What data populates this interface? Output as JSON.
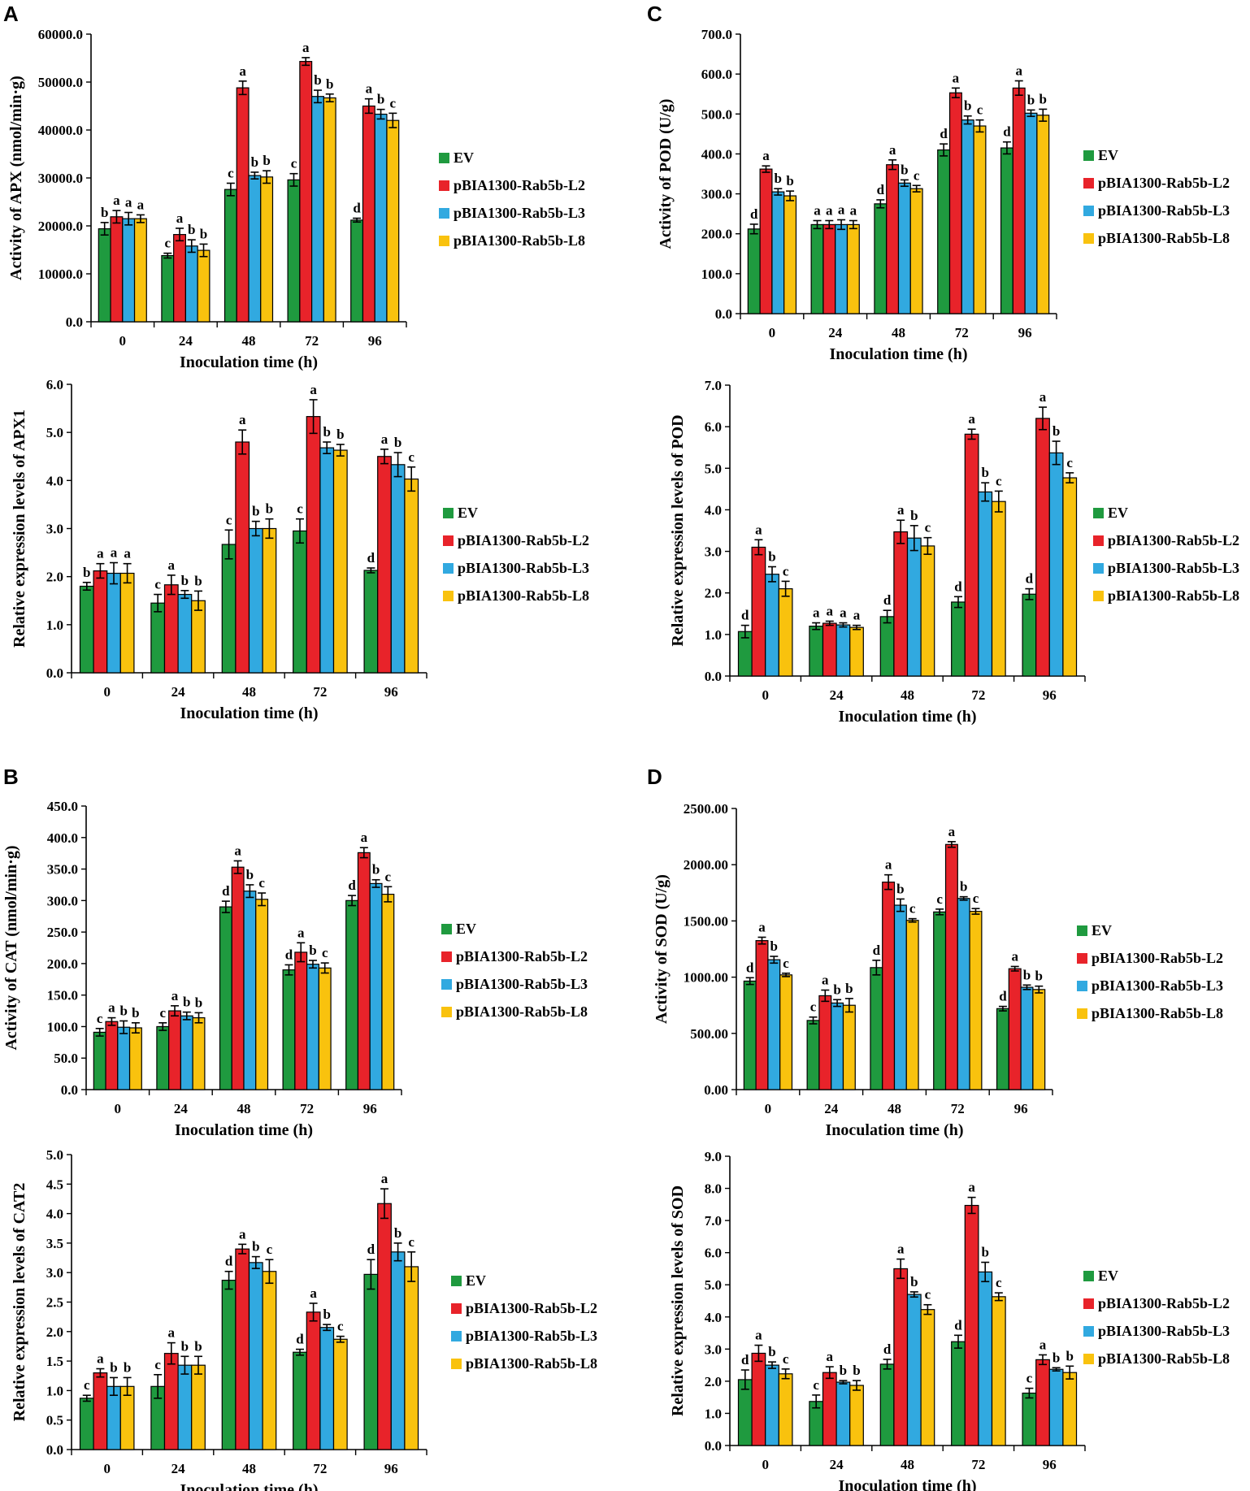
{
  "figure": {
    "panel_labels": [
      "A",
      "C",
      "B",
      "D"
    ],
    "series_names": [
      "EV",
      "pBIA1300-Rab5b-L2",
      "pBIA1300-Rab5b-L3",
      "pBIA1300-Rab5b-L8"
    ],
    "series_colors": [
      "#1f9a3f",
      "#e8232a",
      "#31a9e0",
      "#f9c20e"
    ]
  },
  "chart_data": [
    {
      "type": "bar",
      "panel": "A",
      "categories": [
        "0",
        "24",
        "48",
        "72",
        "96"
      ],
      "xlabel": "Inoculation time (h)",
      "ylabel": "Activity of APX (nmol/min·g)",
      "ylim": [
        0,
        60000
      ],
      "yticks": [
        0,
        10000,
        20000,
        30000,
        40000,
        50000,
        60000
      ],
      "ytick_labels": [
        "0.0",
        "10000.0",
        "20000.0",
        "30000.0",
        "40000.0",
        "50000.0",
        "60000.0"
      ],
      "series": [
        {
          "name": "EV",
          "values": [
            19400,
            13800,
            27600,
            29600,
            21200
          ],
          "errors": [
            1300,
            500,
            1300,
            1300,
            400
          ],
          "letters": [
            "b",
            "c",
            "c",
            "c",
            "d"
          ]
        },
        {
          "name": "pBIA1300-Rab5b-L2",
          "values": [
            21900,
            18200,
            48800,
            54300,
            45000
          ],
          "errors": [
            1300,
            1300,
            1400,
            800,
            1500
          ],
          "letters": [
            "a",
            "a",
            "a",
            "a",
            "a"
          ]
        },
        {
          "name": "pBIA1300-Rab5b-L3",
          "values": [
            21500,
            15800,
            30500,
            47000,
            43300
          ],
          "errors": [
            1300,
            1300,
            700,
            1300,
            1000
          ],
          "letters": [
            "a",
            "b",
            "b",
            "b",
            "b"
          ]
        },
        {
          "name": "pBIA1300-Rab5b-L8",
          "values": [
            21500,
            14900,
            30200,
            46700,
            42000
          ],
          "errors": [
            800,
            1300,
            1300,
            800,
            1500
          ],
          "letters": [
            "a",
            "b",
            "b",
            "b",
            "c"
          ]
        }
      ]
    },
    {
      "type": "bar",
      "panel": "A",
      "categories": [
        "0",
        "24",
        "48",
        "72",
        "96"
      ],
      "xlabel": "Inoculation time (h)",
      "ylabel": "Relative expression levels of APX1",
      "ylim": [
        0,
        6
      ],
      "yticks": [
        0,
        1,
        2,
        3,
        4,
        5,
        6
      ],
      "ytick_labels": [
        "0.0",
        "1.0",
        "2.0",
        "3.0",
        "4.0",
        "5.0",
        "6.0"
      ],
      "series": [
        {
          "name": "EV",
          "values": [
            1.8,
            1.45,
            2.67,
            2.95,
            2.13
          ],
          "errors": [
            0.08,
            0.18,
            0.3,
            0.25,
            0.05
          ],
          "letters": [
            "b",
            "c",
            "c",
            "c",
            "d"
          ]
        },
        {
          "name": "pBIA1300-Rab5b-L2",
          "values": [
            2.12,
            1.83,
            4.8,
            5.33,
            4.5
          ],
          "errors": [
            0.15,
            0.2,
            0.25,
            0.35,
            0.15
          ],
          "letters": [
            "a",
            "a",
            "a",
            "a",
            "a"
          ]
        },
        {
          "name": "pBIA1300-Rab5b-L3",
          "values": [
            2.07,
            1.63,
            3.0,
            4.68,
            4.33
          ],
          "errors": [
            0.22,
            0.08,
            0.15,
            0.12,
            0.25
          ],
          "letters": [
            "a",
            "b",
            "b",
            "b",
            "b"
          ]
        },
        {
          "name": "pBIA1300-Rab5b-L8",
          "values": [
            2.07,
            1.5,
            3.0,
            4.63,
            4.03
          ],
          "errors": [
            0.2,
            0.2,
            0.2,
            0.12,
            0.25
          ],
          "letters": [
            "a",
            "b",
            "b",
            "b",
            "c"
          ]
        }
      ]
    },
    {
      "type": "bar",
      "panel": "C",
      "categories": [
        "0",
        "24",
        "48",
        "72",
        "96"
      ],
      "xlabel": "Inoculation time (h)",
      "ylabel": "Activity of POD (U/g)",
      "ylim": [
        0,
        700
      ],
      "yticks": [
        0,
        100,
        200,
        300,
        400,
        500,
        600,
        700
      ],
      "ytick_labels": [
        "0.0",
        "100.0",
        "200.0",
        "300.0",
        "400.0",
        "500.0",
        "600.0",
        "700.0"
      ],
      "series": [
        {
          "name": "EV",
          "values": [
            212,
            223,
            275,
            410,
            415
          ],
          "errors": [
            12,
            10,
            10,
            15,
            15
          ],
          "letters": [
            "d",
            "a",
            "d",
            "d",
            "d"
          ]
        },
        {
          "name": "pBIA1300-Rab5b-L2",
          "values": [
            362,
            223,
            373,
            553,
            565
          ],
          "errors": [
            8,
            10,
            12,
            12,
            18
          ],
          "letters": [
            "a",
            "a",
            "a",
            "a",
            "a"
          ]
        },
        {
          "name": "pBIA1300-Rab5b-L3",
          "values": [
            305,
            223,
            327,
            485,
            502
          ],
          "errors": [
            8,
            12,
            8,
            10,
            8
          ],
          "letters": [
            "b",
            "a",
            "b",
            "b",
            "b"
          ]
        },
        {
          "name": "pBIA1300-Rab5b-L8",
          "values": [
            295,
            223,
            313,
            470,
            497
          ],
          "errors": [
            12,
            10,
            8,
            15,
            15
          ],
          "letters": [
            "b",
            "a",
            "c",
            "c",
            "b"
          ]
        }
      ]
    },
    {
      "type": "bar",
      "panel": "C",
      "categories": [
        "0",
        "24",
        "48",
        "72",
        "96"
      ],
      "xlabel": "Inoculation time (h)",
      "ylabel": "Relative expression levels of POD",
      "ylim": [
        0,
        7
      ],
      "yticks": [
        0,
        1,
        2,
        3,
        4,
        5,
        6,
        7
      ],
      "ytick_labels": [
        "0.0",
        "1.0",
        "2.0",
        "3.0",
        "4.0",
        "5.0",
        "6.0",
        "7.0"
      ],
      "series": [
        {
          "name": "EV",
          "values": [
            1.07,
            1.2,
            1.43,
            1.78,
            1.97
          ],
          "errors": [
            0.15,
            0.08,
            0.15,
            0.13,
            0.13
          ],
          "letters": [
            "d",
            "a",
            "d",
            "d",
            "d"
          ]
        },
        {
          "name": "pBIA1300-Rab5b-L2",
          "values": [
            3.1,
            1.27,
            3.47,
            5.82,
            6.2
          ],
          "errors": [
            0.18,
            0.05,
            0.28,
            0.12,
            0.27
          ],
          "letters": [
            "a",
            "a",
            "a",
            "a",
            "a"
          ]
        },
        {
          "name": "pBIA1300-Rab5b-L3",
          "values": [
            2.45,
            1.23,
            3.32,
            4.43,
            5.37
          ],
          "errors": [
            0.18,
            0.05,
            0.3,
            0.22,
            0.28
          ],
          "letters": [
            "b",
            "a",
            "b",
            "b",
            "b"
          ]
        },
        {
          "name": "pBIA1300-Rab5b-L8",
          "values": [
            2.1,
            1.17,
            3.13,
            4.2,
            4.77
          ],
          "errors": [
            0.18,
            0.05,
            0.2,
            0.25,
            0.12
          ],
          "letters": [
            "c",
            "a",
            "c",
            "c",
            "c"
          ]
        }
      ]
    },
    {
      "type": "bar",
      "panel": "B",
      "categories": [
        "0",
        "24",
        "48",
        "72",
        "96"
      ],
      "xlabel": "Inoculation time (h)",
      "ylabel": "Activity of CAT (nmol/min·g)",
      "ylim": [
        0,
        450
      ],
      "yticks": [
        0,
        50,
        100,
        150,
        200,
        250,
        300,
        350,
        400,
        450
      ],
      "ytick_labels": [
        "0.0",
        "50.0",
        "100.0",
        "150.0",
        "200.0",
        "250.0",
        "300.0",
        "350.0",
        "400.0",
        "450.0"
      ],
      "series": [
        {
          "name": "EV",
          "values": [
            91,
            100,
            290,
            190,
            300
          ],
          "errors": [
            6,
            6,
            9,
            8,
            8
          ],
          "letters": [
            "c",
            "c",
            "d",
            "d",
            "d"
          ]
        },
        {
          "name": "pBIA1300-Rab5b-L2",
          "values": [
            108,
            125,
            353,
            218,
            376
          ],
          "errors": [
            6,
            8,
            10,
            15,
            8
          ],
          "letters": [
            "a",
            "a",
            "a",
            "a",
            "a"
          ]
        },
        {
          "name": "pBIA1300-Rab5b-L3",
          "values": [
            99,
            117,
            315,
            199,
            327
          ],
          "errors": [
            10,
            6,
            10,
            6,
            6
          ],
          "letters": [
            "b",
            "b",
            "b",
            "b",
            "b"
          ]
        },
        {
          "name": "pBIA1300-Rab5b-L8",
          "values": [
            98,
            114,
            302,
            193,
            310
          ],
          "errors": [
            8,
            8,
            10,
            8,
            12
          ],
          "letters": [
            "b",
            "b",
            "c",
            "c",
            "c"
          ]
        }
      ]
    },
    {
      "type": "bar",
      "panel": "B",
      "categories": [
        "0",
        "24",
        "48",
        "72",
        "96"
      ],
      "xlabel": "Inoculation time (h)",
      "ylabel": "Relative expression levels of CAT2",
      "ylim": [
        0,
        5
      ],
      "yticks": [
        0,
        0.5,
        1,
        1.5,
        2,
        2.5,
        3,
        3.5,
        4,
        4.5,
        5
      ],
      "ytick_labels": [
        "0.0",
        "0.5",
        "1.0",
        "1.5",
        "2.0",
        "2.5",
        "3.0",
        "3.5",
        "4.0",
        "4.5",
        "5.0"
      ],
      "series": [
        {
          "name": "EV",
          "values": [
            0.87,
            1.07,
            2.87,
            1.65,
            2.97
          ],
          "errors": [
            0.05,
            0.2,
            0.15,
            0.05,
            0.25
          ],
          "letters": [
            "c",
            "c",
            "d",
            "d",
            "d"
          ]
        },
        {
          "name": "pBIA1300-Rab5b-L2",
          "values": [
            1.3,
            1.63,
            3.4,
            2.33,
            4.17
          ],
          "errors": [
            0.07,
            0.18,
            0.08,
            0.15,
            0.25
          ],
          "letters": [
            "a",
            "a",
            "a",
            "a",
            "a"
          ]
        },
        {
          "name": "pBIA1300-Rab5b-L3",
          "values": [
            1.07,
            1.43,
            3.17,
            2.07,
            3.35
          ],
          "errors": [
            0.15,
            0.15,
            0.1,
            0.05,
            0.15
          ],
          "letters": [
            "b",
            "b",
            "b",
            "b",
            "b"
          ]
        },
        {
          "name": "pBIA1300-Rab5b-L8",
          "values": [
            1.07,
            1.43,
            3.02,
            1.87,
            3.1
          ],
          "errors": [
            0.15,
            0.15,
            0.2,
            0.05,
            0.25
          ],
          "letters": [
            "b",
            "b",
            "c",
            "c",
            "c"
          ]
        }
      ]
    },
    {
      "type": "bar",
      "panel": "D",
      "categories": [
        "0",
        "24",
        "48",
        "72",
        "96"
      ],
      "xlabel": "Inoculation time (h)",
      "ylabel": "Activity of SOD (U/g)",
      "ylim": [
        0,
        2500
      ],
      "yticks": [
        0,
        500,
        1000,
        1500,
        2000,
        2500
      ],
      "ytick_labels": [
        "0.00",
        "500.00",
        "1000.00",
        "1500.00",
        "2000.00",
        "2500.00"
      ],
      "series": [
        {
          "name": "EV",
          "values": [
            965,
            615,
            1085,
            1580,
            720
          ],
          "errors": [
            30,
            30,
            65,
            25,
            20
          ],
          "letters": [
            "d",
            "c",
            "d",
            "c",
            "d"
          ]
        },
        {
          "name": "pBIA1300-Rab5b-L2",
          "values": [
            1325,
            835,
            1845,
            2180,
            1075
          ],
          "errors": [
            30,
            50,
            65,
            25,
            20
          ],
          "letters": [
            "a",
            "a",
            "a",
            "a",
            "a"
          ]
        },
        {
          "name": "pBIA1300-Rab5b-L3",
          "values": [
            1155,
            770,
            1640,
            1700,
            910
          ],
          "errors": [
            30,
            30,
            55,
            15,
            20
          ],
          "letters": [
            "b",
            "b",
            "b",
            "b",
            "b"
          ]
        },
        {
          "name": "pBIA1300-Rab5b-L8",
          "values": [
            1020,
            750,
            1505,
            1585,
            890
          ],
          "errors": [
            15,
            60,
            15,
            25,
            30
          ],
          "letters": [
            "c",
            "b",
            "c",
            "c",
            "b"
          ]
        }
      ]
    },
    {
      "type": "bar",
      "panel": "D",
      "categories": [
        "0",
        "24",
        "48",
        "72",
        "96"
      ],
      "xlabel": "Inoculation time (h)",
      "ylabel": "Relative expression levels of SOD",
      "ylim": [
        0,
        9
      ],
      "yticks": [
        0,
        1,
        2,
        3,
        4,
        5,
        6,
        7,
        8,
        9
      ],
      "ytick_labels": [
        "0.0",
        "1.0",
        "2.0",
        "3.0",
        "4.0",
        "5.0",
        "6.0",
        "7.0",
        "8.0",
        "9.0"
      ],
      "series": [
        {
          "name": "EV",
          "values": [
            2.05,
            1.37,
            2.53,
            3.23,
            1.63
          ],
          "errors": [
            0.3,
            0.2,
            0.15,
            0.2,
            0.15
          ],
          "letters": [
            "d",
            "c",
            "d",
            "d",
            "c"
          ]
        },
        {
          "name": "pBIA1300-Rab5b-L2",
          "values": [
            2.87,
            2.27,
            5.5,
            7.47,
            2.67
          ],
          "errors": [
            0.25,
            0.18,
            0.3,
            0.25,
            0.15
          ],
          "letters": [
            "a",
            "a",
            "a",
            "a",
            "a"
          ]
        },
        {
          "name": "pBIA1300-Rab5b-L3",
          "values": [
            2.5,
            1.97,
            4.7,
            5.4,
            2.37
          ],
          "errors": [
            0.1,
            0.05,
            0.08,
            0.3,
            0.05
          ],
          "letters": [
            "b",
            "b",
            "b",
            "b",
            "b"
          ]
        },
        {
          "name": "pBIA1300-Rab5b-L8",
          "values": [
            2.23,
            1.87,
            4.23,
            4.63,
            2.27
          ],
          "errors": [
            0.15,
            0.15,
            0.15,
            0.12,
            0.2
          ],
          "letters": [
            "c",
            "b",
            "c",
            "c",
            "b"
          ]
        }
      ]
    }
  ]
}
